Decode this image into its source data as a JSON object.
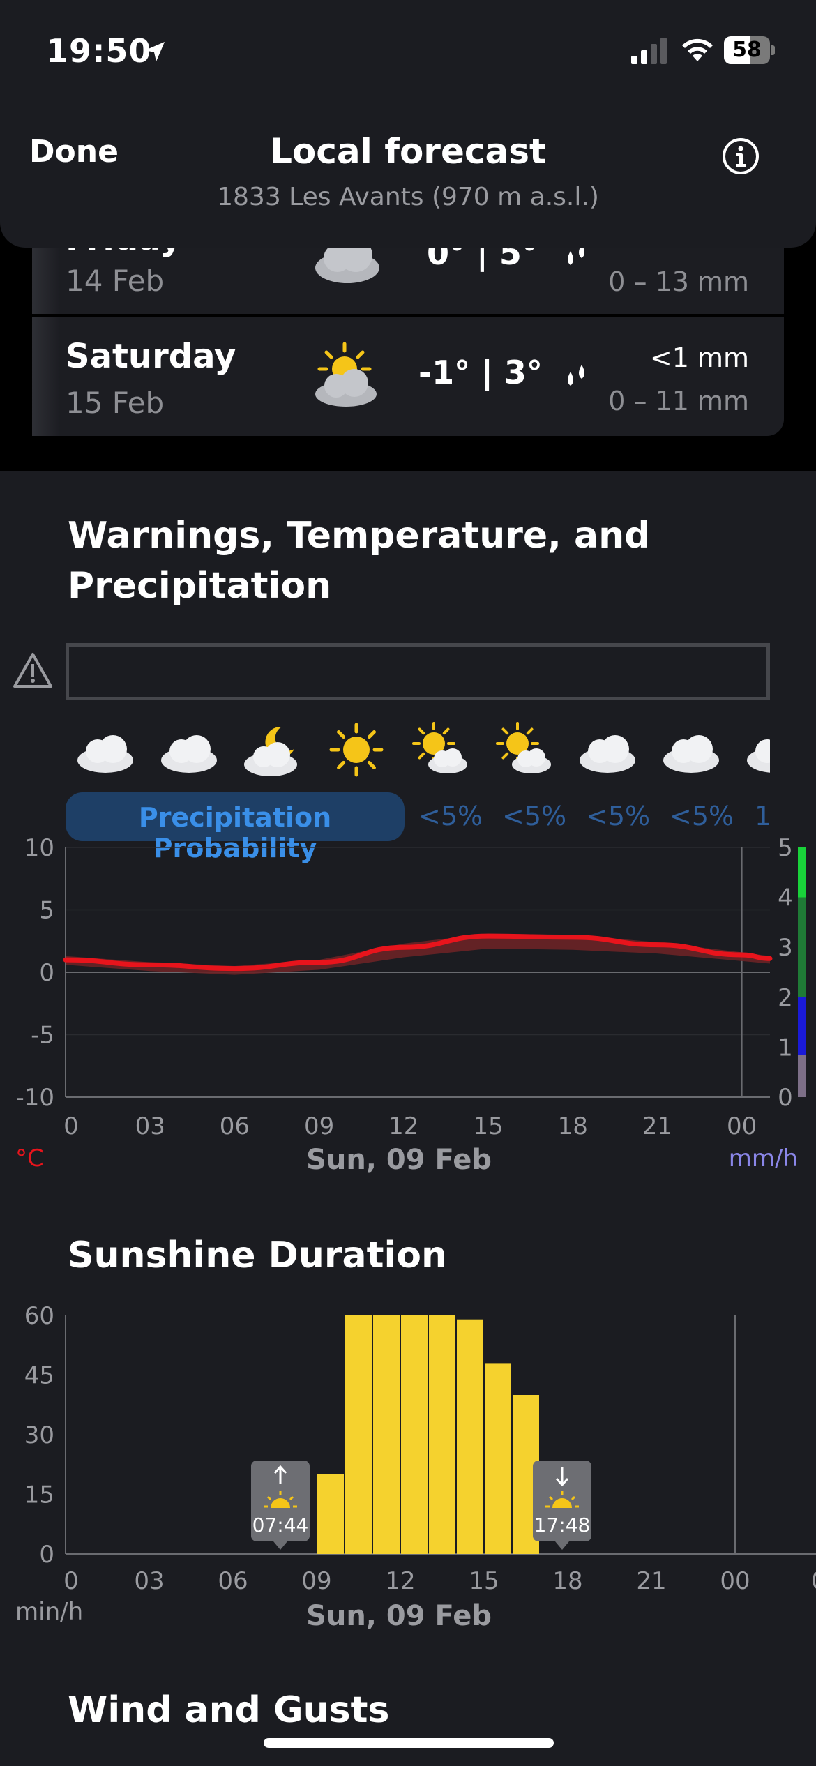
{
  "status_bar": {
    "time": "19:50",
    "battery": "58",
    "battery_level": 0.58
  },
  "header": {
    "done_label": "Done",
    "title": "Local forecast",
    "subtitle": "1833 Les Avants (970 m a.s.l.)",
    "info_icon": "info-circle-icon"
  },
  "days": [
    {
      "name": "Friday",
      "date": "14 Feb",
      "temps": "0° | 5°",
      "precip": "",
      "range": "0 – 13 mm",
      "icon": "cloud-icon"
    },
    {
      "name": "Saturday",
      "date": "15 Feb",
      "temps": "-1° | 3°",
      "precip": "<1 mm",
      "range": "0 – 11 mm",
      "icon": "sun-behind-cloud-icon"
    }
  ],
  "sections": {
    "warnings_title": "Warnings, Temperature, and Precipitation",
    "warnings_title_line1": "Warnings, Temperature, and",
    "warnings_title_line2": "Precipitation",
    "sunshine_title": "Sunshine Duration",
    "wind_title": "Wind and Gusts"
  },
  "hourly_icons": [
    "cloud-icon",
    "cloud-icon",
    "moon-cloud-icon",
    "sun-icon",
    "sun-cloud-icon",
    "sun-cloud-icon",
    "cloud-icon",
    "cloud-icon",
    "cloud-icon"
  ],
  "precip_probability": {
    "label": "Precipitation Probability",
    "values": [
      "<5%",
      "<5%",
      "<5%",
      "<5%",
      "1"
    ]
  },
  "temp_chart": {
    "x_ticks": [
      "0",
      "03",
      "06",
      "09",
      "12",
      "15",
      "18",
      "21",
      "00"
    ],
    "y_left_ticks": [
      "10",
      "5",
      "0",
      "-5",
      "-10"
    ],
    "y_right_ticks": [
      "5",
      "4",
      "3",
      "2",
      "1",
      "0"
    ],
    "left_unit": "°C",
    "right_unit": "mm/h",
    "date_label": "Sun, 09 Feb"
  },
  "sun_chart": {
    "x_ticks": [
      "0",
      "03",
      "06",
      "09",
      "12",
      "15",
      "18",
      "21",
      "00",
      "0"
    ],
    "y_ticks": [
      "60",
      "45",
      "30",
      "15",
      "0"
    ],
    "unit": "min/h",
    "date_label": "Sun, 09 Feb",
    "sunrise": "07:44",
    "sunset": "17:48"
  },
  "chart_data": [
    {
      "type": "line",
      "title": "",
      "xlabel": "Sun, 09 Feb",
      "ylabel": "°C",
      "x": [
        0,
        3,
        6,
        9,
        12,
        15,
        18,
        21,
        24,
        25
      ],
      "series": [
        {
          "name": "",
          "values": [
            1,
            0.6,
            0.3,
            0.8,
            2.0,
            2.9,
            2.8,
            2.2,
            1.4,
            1.1
          ]
        }
      ],
      "band": {
        "low": [
          0.6,
          0.1,
          -0.2,
          0.2,
          1.2,
          1.9,
          1.8,
          1.5,
          0.9,
          0.7
        ],
        "high": [
          1.3,
          0.8,
          0.5,
          1.0,
          2.3,
          3.1,
          3.0,
          2.4,
          1.6,
          1.3
        ]
      },
      "ylim": [
        -10,
        10
      ],
      "y2lim": [
        0,
        5
      ],
      "grid": true
    },
    {
      "type": "bar",
      "title": "",
      "xlabel": "Sun, 09 Feb",
      "ylabel": "min/h",
      "categories": [
        "9",
        "10",
        "11",
        "12",
        "13",
        "14",
        "15",
        "16"
      ],
      "values": [
        20,
        60,
        60,
        60,
        60,
        59,
        48,
        40
      ],
      "ylim": [
        0,
        60
      ]
    }
  ]
}
